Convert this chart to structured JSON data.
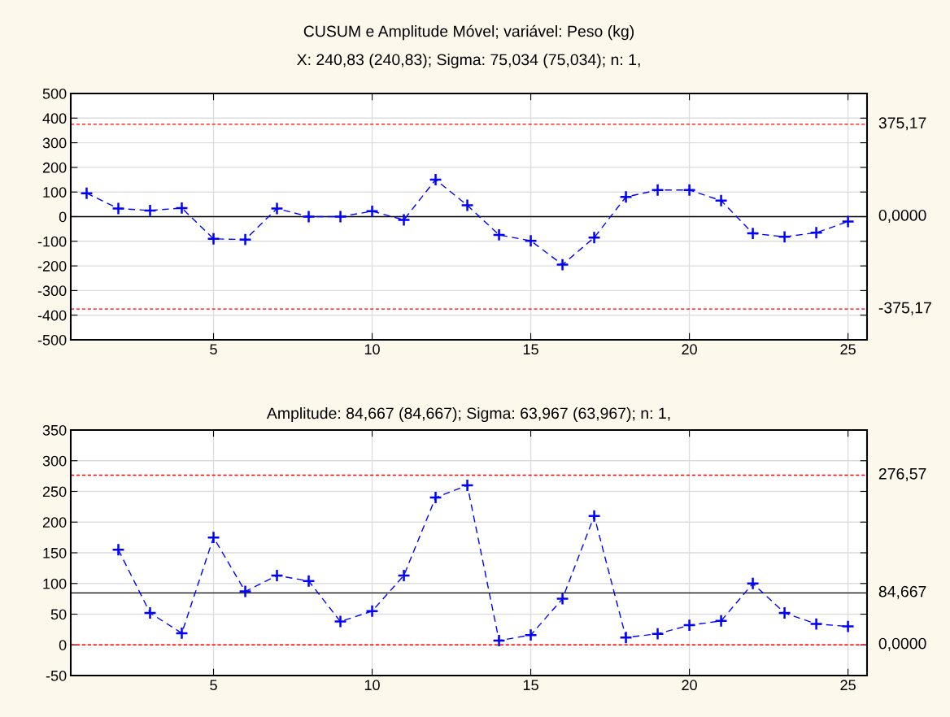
{
  "chart_data": [
    {
      "type": "line",
      "title": "CUSUM e Amplitude Móvel; variável: Peso (kg)",
      "subtitle": "X: 240,83 (240,83); Sigma: 75,034 (75,034); n: 1,",
      "x": [
        1,
        2,
        3,
        4,
        5,
        6,
        7,
        8,
        9,
        10,
        11,
        12,
        13,
        14,
        15,
        16,
        17,
        18,
        19,
        20,
        21,
        22,
        23,
        24,
        25
      ],
      "series": [
        {
          "color": "#0000ff",
          "values": [
            95,
            33,
            25,
            35,
            -90,
            -93,
            33,
            0,
            0,
            22,
            -13,
            150,
            46,
            -74,
            -98,
            -195,
            -85,
            80,
            108,
            108,
            65,
            -68,
            -82,
            -65,
            -20
          ]
        }
      ],
      "xlim": [
        0.5,
        25.6
      ],
      "xticks": [
        5,
        10,
        15,
        20,
        25
      ],
      "ylim": [
        -500,
        500
      ],
      "yticks": [
        -500,
        -400,
        -300,
        -200,
        -100,
        0,
        100,
        200,
        300,
        400,
        500
      ],
      "ref_lines": [
        {
          "axis": "y",
          "value": 375.17,
          "label": "375,17",
          "color": "#ff0000",
          "line_style": "dashed"
        },
        {
          "axis": "y",
          "value": 0,
          "label": "0,0000",
          "color": "#000000",
          "line_style": "solid"
        },
        {
          "axis": "y",
          "value": -375.17,
          "label": "-375,17",
          "color": "#ff0000",
          "line_style": "dashed"
        }
      ],
      "grid": true,
      "marker": "cross",
      "line_style": "dashed",
      "legend": false
    },
    {
      "type": "line",
      "title": "Amplitude: 84,667 (84,667); Sigma: 63,967 (63,967); n: 1,",
      "series": [
        {
          "color": "#0000ff",
          "x": [
            2,
            3,
            4,
            5,
            6,
            7,
            8,
            9,
            10,
            11,
            12,
            13,
            14,
            15,
            16,
            17,
            18,
            19,
            20,
            21,
            22,
            23,
            24,
            25
          ],
          "values": [
            155,
            52,
            19,
            175,
            87,
            113,
            104,
            38,
            55,
            113,
            240,
            260,
            7,
            16,
            75,
            210,
            12,
            18,
            32,
            39,
            100,
            52,
            34,
            30
          ]
        }
      ],
      "xlim": [
        0.5,
        25.6
      ],
      "xticks": [
        5,
        10,
        15,
        20,
        25
      ],
      "ylim": [
        -50,
        350
      ],
      "yticks": [
        -50,
        0,
        50,
        100,
        150,
        200,
        250,
        300,
        350
      ],
      "ref_lines": [
        {
          "axis": "y",
          "value": 276.57,
          "label": "276,57",
          "color": "#ff0000",
          "line_style": "dashed"
        },
        {
          "axis": "y",
          "value": 84.667,
          "label": "84,667",
          "color": "#000000",
          "line_style": "solid"
        },
        {
          "axis": "y",
          "value": 0,
          "label": "0,0000",
          "color": "#ff0000",
          "line_style": "dashed"
        }
      ],
      "grid": true,
      "marker": "cross",
      "line_style": "dashed",
      "legend": false
    }
  ]
}
